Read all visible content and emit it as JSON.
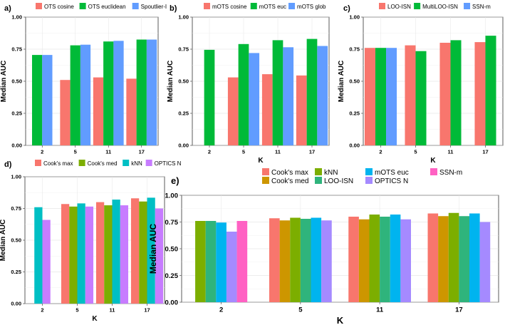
{
  "colors": {
    "salmon": "#F8766D",
    "green": "#00BA38",
    "blue": "#619CFF",
    "olive": "#7CAE00",
    "teal": "#00BFC4",
    "purple": "#C77CFF",
    "gold": "#CD9600",
    "cyan": "#00B4EF",
    "lavender": "#A58AFF",
    "magenta": "#FF61C3",
    "seagreen": "#2FB47C"
  },
  "chart_data": [
    {
      "id": "a",
      "type": "bar",
      "panel_label": "a)",
      "title": "",
      "xlabel": "",
      "ylabel": "Median AUC",
      "ylim": [
        0,
        1.0
      ],
      "yticks": [
        "0.00",
        "0.25",
        "0.50",
        "0.75",
        "1.00"
      ],
      "grid": true,
      "categories": [
        "2",
        "5",
        "11",
        "17"
      ],
      "series": [
        {
          "name": "OTS cosine",
          "color": "#F8766D",
          "values": [
            null,
            0.51,
            0.53,
            0.52
          ]
        },
        {
          "name": "OTS euclidean",
          "color": "#00BA38",
          "values": [
            0.705,
            0.78,
            0.81,
            0.825
          ]
        },
        {
          "name": "Spoutlier-I",
          "color": "#619CFF",
          "values": [
            0.705,
            0.785,
            0.815,
            0.825
          ]
        }
      ]
    },
    {
      "id": "b",
      "type": "bar",
      "panel_label": "b)",
      "title": "",
      "xlabel": "K",
      "ylabel": "Median AUC",
      "ylim": [
        0,
        1.0
      ],
      "yticks": [
        "0.00",
        "0.25",
        "0.50",
        "0.75",
        "1.00"
      ],
      "grid": true,
      "categories": [
        "2",
        "5",
        "11",
        "17"
      ],
      "series": [
        {
          "name": "mOTS cosine",
          "color": "#F8766D",
          "values": [
            null,
            0.53,
            0.555,
            0.545
          ]
        },
        {
          "name": "mOTS euc",
          "color": "#00BA38",
          "values": [
            0.745,
            0.79,
            0.82,
            0.83
          ]
        },
        {
          "name": "mOTS glob",
          "color": "#619CFF",
          "values": [
            null,
            0.72,
            0.765,
            0.775
          ]
        }
      ]
    },
    {
      "id": "c",
      "type": "bar",
      "panel_label": "c)",
      "title": "",
      "xlabel": "K",
      "ylabel": "Median AUC",
      "ylim": [
        0,
        1.0
      ],
      "yticks": [
        "0.00",
        "0.25",
        "0.50",
        "0.75",
        "1.00"
      ],
      "grid": true,
      "categories": [
        "2",
        "5",
        "11",
        "17"
      ],
      "series": [
        {
          "name": "LOO-ISN",
          "color": "#F8766D",
          "values": [
            0.76,
            0.78,
            0.8,
            0.805
          ]
        },
        {
          "name": "MultiLOO-ISN",
          "color": "#00BA38",
          "values": [
            0.76,
            0.735,
            0.82,
            0.855
          ]
        },
        {
          "name": "SSN-m",
          "color": "#619CFF",
          "values": [
            0.76,
            null,
            null,
            null
          ]
        }
      ]
    },
    {
      "id": "d",
      "type": "bar",
      "panel_label": "d)",
      "title": "",
      "xlabel": "K",
      "ylabel": "Median AUC",
      "ylim": [
        0,
        1.0
      ],
      "yticks": [
        "0.00",
        "0.25",
        "0.50",
        "0.75",
        "1.00"
      ],
      "grid": true,
      "categories": [
        "2",
        "5",
        "11",
        "17"
      ],
      "series": [
        {
          "name": "Cook's max",
          "color": "#F8766D",
          "values": [
            null,
            0.785,
            0.8,
            0.83
          ]
        },
        {
          "name": "Cook's med",
          "color": "#7CAE00",
          "values": [
            null,
            0.765,
            0.775,
            0.805
          ]
        },
        {
          "name": "kNN",
          "color": "#00BFC4",
          "values": [
            0.76,
            0.79,
            0.82,
            0.835
          ]
        },
        {
          "name": "OPTICS N",
          "color": "#C77CFF",
          "values": [
            0.66,
            0.765,
            0.775,
            0.75
          ]
        }
      ]
    },
    {
      "id": "e",
      "type": "bar",
      "panel_label": "e)",
      "title": "",
      "xlabel": "K",
      "ylabel": "Median AUC",
      "ylim": [
        0,
        1.0
      ],
      "yticks": [
        "0.00",
        "0.25",
        "0.50",
        "0.75",
        "1.00"
      ],
      "grid": true,
      "categories": [
        "2",
        "5",
        "11",
        "17"
      ],
      "series": [
        {
          "name": "Cook's max",
          "color": "#F8766D",
          "values": [
            null,
            0.785,
            0.8,
            0.83
          ]
        },
        {
          "name": "Cook's med",
          "color": "#CD9600",
          "values": [
            null,
            0.765,
            0.775,
            0.805
          ]
        },
        {
          "name": "kNN",
          "color": "#7CAE00",
          "values": [
            0.76,
            0.79,
            0.82,
            0.835
          ]
        },
        {
          "name": "LOO-ISN",
          "color": "#2FB47C",
          "values": [
            0.76,
            0.78,
            0.8,
            0.805
          ]
        },
        {
          "name": "mOTS euc",
          "color": "#00B4EF",
          "values": [
            0.745,
            0.79,
            0.82,
            0.83
          ]
        },
        {
          "name": "OPTICS N",
          "color": "#A58AFF",
          "values": [
            0.66,
            0.765,
            0.775,
            0.75
          ]
        },
        {
          "name": "SSN-m",
          "color": "#FF61C3",
          "values": [
            0.76,
            null,
            null,
            null
          ]
        }
      ]
    }
  ]
}
